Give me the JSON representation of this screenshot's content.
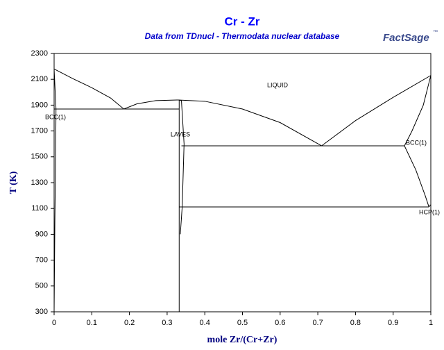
{
  "chart_data": {
    "type": "line",
    "title": "Cr - Zr",
    "subtitle": "Data from TDnucl - Thermodata nuclear database",
    "logo": "FactSage",
    "logo_mark": "™",
    "xlabel": "mole Zr/(Cr+Zr)",
    "ylabel": "T (K)",
    "xlim": [
      0,
      1
    ],
    "ylim": [
      300,
      2300
    ],
    "xticks": [
      0,
      0.1,
      0.2,
      0.3,
      0.4,
      0.5,
      0.6,
      0.7,
      0.8,
      0.9,
      1
    ],
    "yticks": [
      300,
      500,
      700,
      900,
      1100,
      1300,
      1500,
      1700,
      1900,
      2100,
      2300
    ],
    "grid": false,
    "annotations": [
      "LIQUID",
      "LAVES",
      "BCC(1)",
      "BCC(1)",
      "HCP(1)"
    ],
    "series": [
      {
        "color": "#000000",
        "x": [
          0,
          0.05,
          0.1,
          0.15,
          0.185
        ],
        "values": [
          2180,
          2105,
          2035,
          1955,
          1870
        ]
      },
      {
        "color": "#000000",
        "x": [
          0.185,
          0.22,
          0.27,
          0.33,
          0.4,
          0.5,
          0.6,
          0.71
        ],
        "values": [
          1870,
          1910,
          1935,
          1940,
          1930,
          1870,
          1765,
          1585
        ]
      },
      {
        "color": "#000000",
        "x": [
          0.71,
          0.8,
          0.9,
          1
        ],
        "values": [
          1585,
          1780,
          1960,
          2130
        ]
      },
      {
        "color": "#000000",
        "x": [
          0,
          0.332
        ],
        "values": [
          1870,
          1870
        ]
      },
      {
        "color": "#000000",
        "x": [
          0.338,
          0.93
        ],
        "values": [
          1585,
          1585
        ]
      },
      {
        "color": "#000000",
        "x": [
          0.332,
          0.995
        ],
        "values": [
          1112,
          1112
        ]
      },
      {
        "color": "#000000",
        "x": [
          0.332,
          0.332,
          0.332
        ],
        "values": [
          300,
          1100,
          1940
        ]
      },
      {
        "color": "#000000",
        "x": [
          0.332,
          0.338,
          0.345,
          0.34,
          0.335
        ],
        "values": [
          1940,
          1935,
          1600,
          1112,
          900
        ]
      },
      {
        "color": "#000000",
        "x": [
          0,
          0.005,
          0.004,
          0.002,
          0
        ],
        "values": [
          2180,
          1870,
          1500,
          1000,
          300
        ]
      },
      {
        "color": "#000000",
        "x": [
          1,
          0.98,
          0.95,
          0.93
        ],
        "values": [
          2130,
          1900,
          1700,
          1585
        ]
      },
      {
        "color": "#000000",
        "x": [
          0.93,
          0.96,
          0.985,
          0.995
        ],
        "values": [
          1585,
          1400,
          1200,
          1112
        ]
      },
      {
        "color": "#000000",
        "x": [
          0.995,
          1,
          1,
          1
        ],
        "values": [
          1112,
          1130,
          1000,
          800
        ]
      }
    ]
  }
}
